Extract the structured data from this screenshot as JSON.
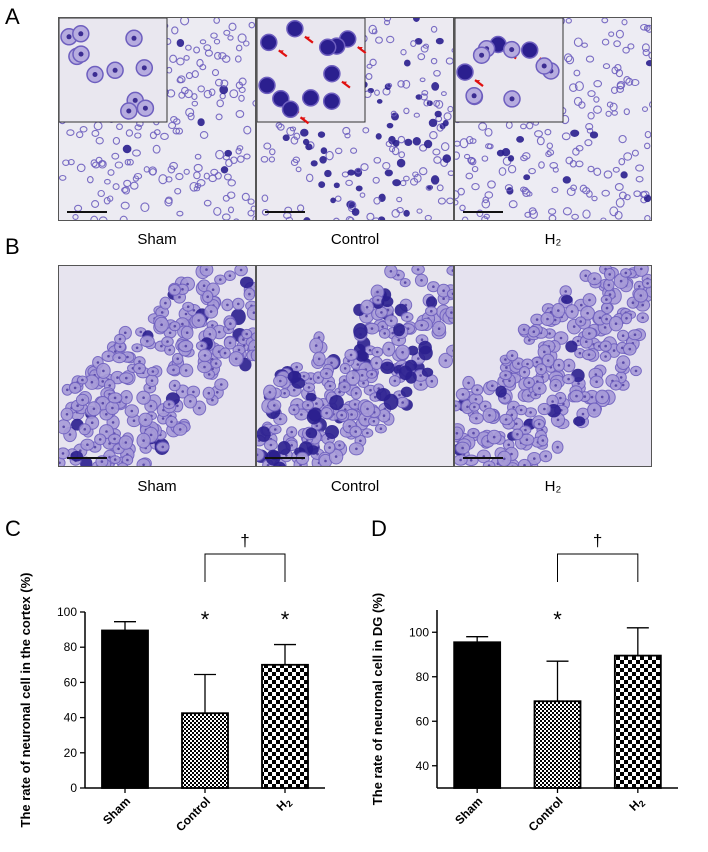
{
  "panels": {
    "a": "A",
    "b": "B",
    "c": "C",
    "d": "D"
  },
  "micrograph_row_a": {
    "captions": [
      "Sham",
      "Control",
      "H₂"
    ]
  },
  "micrograph_row_b": {
    "captions": [
      "Sham",
      "Control",
      "H₂"
    ]
  },
  "colors": {
    "stain": "#6e5fbf",
    "stain_dark": "#2b1f8f",
    "background_tissue": "#e8e5f0",
    "arrow": "#e01010"
  },
  "chart_data": [
    {
      "type": "bar",
      "panel": "C",
      "categories": [
        "Sham",
        "Control",
        "H2"
      ],
      "values": [
        89.5,
        42.5,
        70
      ],
      "errors": [
        5,
        22,
        11.5
      ],
      "fills": [
        "solid-black",
        "fine-check",
        "coarse-check"
      ],
      "ylabel": "The rate of neuronal cell in the cortex (%)",
      "ylim": [
        0,
        100
      ],
      "yticks": [
        0,
        20,
        40,
        60,
        80,
        100
      ],
      "significance": {
        "stars": [
          "Control",
          "H2"
        ],
        "star_symbol": "*",
        "bracket": [
          "Control",
          "H2"
        ],
        "bracket_symbol": "†"
      }
    },
    {
      "type": "bar",
      "panel": "D",
      "categories": [
        "Sham",
        "Control",
        "H2"
      ],
      "values": [
        95.5,
        69,
        89.5
      ],
      "errors": [
        2.5,
        18,
        12.5
      ],
      "fills": [
        "solid-black",
        "fine-check",
        "coarse-check"
      ],
      "ylabel": "The rate of neuronal cell in DG (%)",
      "ylim": [
        30,
        110
      ],
      "yticks": [
        40,
        60,
        80,
        100
      ],
      "significance": {
        "stars": [
          "Control"
        ],
        "star_symbol": "*",
        "bracket": [
          "Control",
          "H2"
        ],
        "bracket_symbol": "†"
      }
    }
  ]
}
